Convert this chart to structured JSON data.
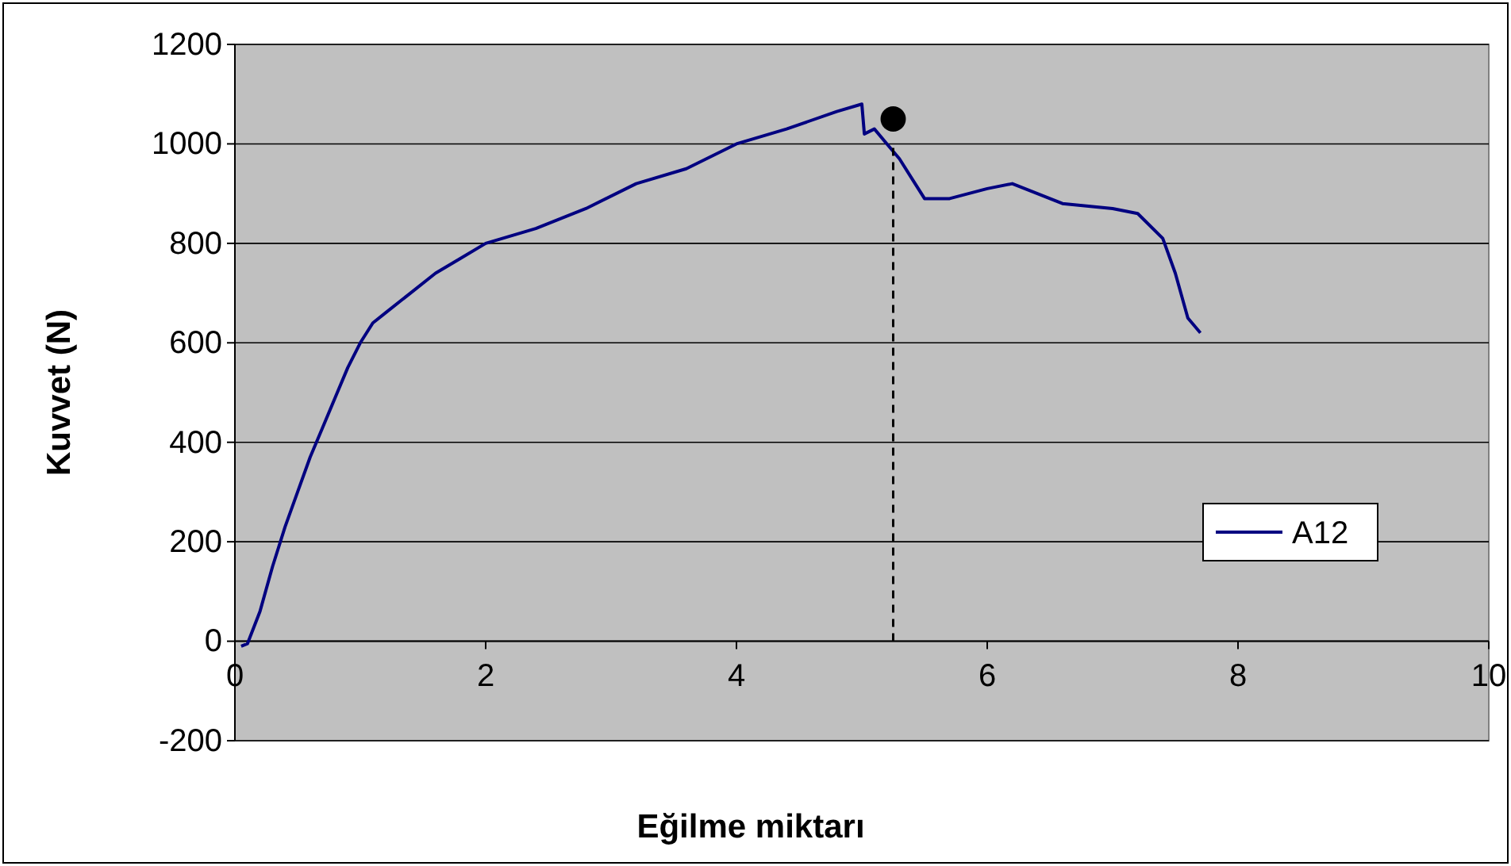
{
  "chart_data": {
    "type": "line",
    "xlabel": "Eğilme miktarı",
    "ylabel": "Kuvvet (N)",
    "xlim": [
      0,
      10
    ],
    "ylim": [
      -200,
      1200
    ],
    "xticks": [
      0,
      2,
      4,
      6,
      8,
      10
    ],
    "yticks": [
      -200,
      0,
      200,
      400,
      600,
      800,
      1000,
      1200
    ],
    "grid": "y",
    "legend": "right",
    "series": [
      {
        "name": "A12",
        "color": "#000080",
        "x": [
          0.05,
          0.1,
          0.2,
          0.3,
          0.4,
          0.5,
          0.6,
          0.7,
          0.8,
          0.9,
          1.0,
          1.1,
          1.2,
          1.4,
          1.6,
          1.8,
          2.0,
          2.4,
          2.8,
          3.2,
          3.6,
          4.0,
          4.4,
          4.8,
          5.0,
          5.02,
          5.1,
          5.2,
          5.3,
          5.4,
          5.5,
          5.7,
          6.0,
          6.2,
          6.4,
          6.6,
          7.0,
          7.2,
          7.4,
          7.5,
          7.6,
          7.7
        ],
        "values": [
          -10,
          -5,
          60,
          150,
          230,
          300,
          370,
          430,
          490,
          550,
          600,
          640,
          660,
          700,
          740,
          770,
          800,
          830,
          870,
          920,
          950,
          1000,
          1030,
          1065,
          1080,
          1020,
          1030,
          1000,
          970,
          930,
          890,
          890,
          910,
          920,
          900,
          880,
          870,
          860,
          810,
          740,
          650,
          620
        ]
      },
      {
        "type": "line",
        "color": "#000000",
        "line_style": "dashed",
        "x": [
          5.25,
          5.25
        ],
        "values": [
          0,
          1000
        ]
      },
      {
        "type": "scatter",
        "color": "#000000",
        "marker": "circle",
        "x": [
          5.25
        ],
        "values": [
          1050
        ]
      }
    ]
  }
}
